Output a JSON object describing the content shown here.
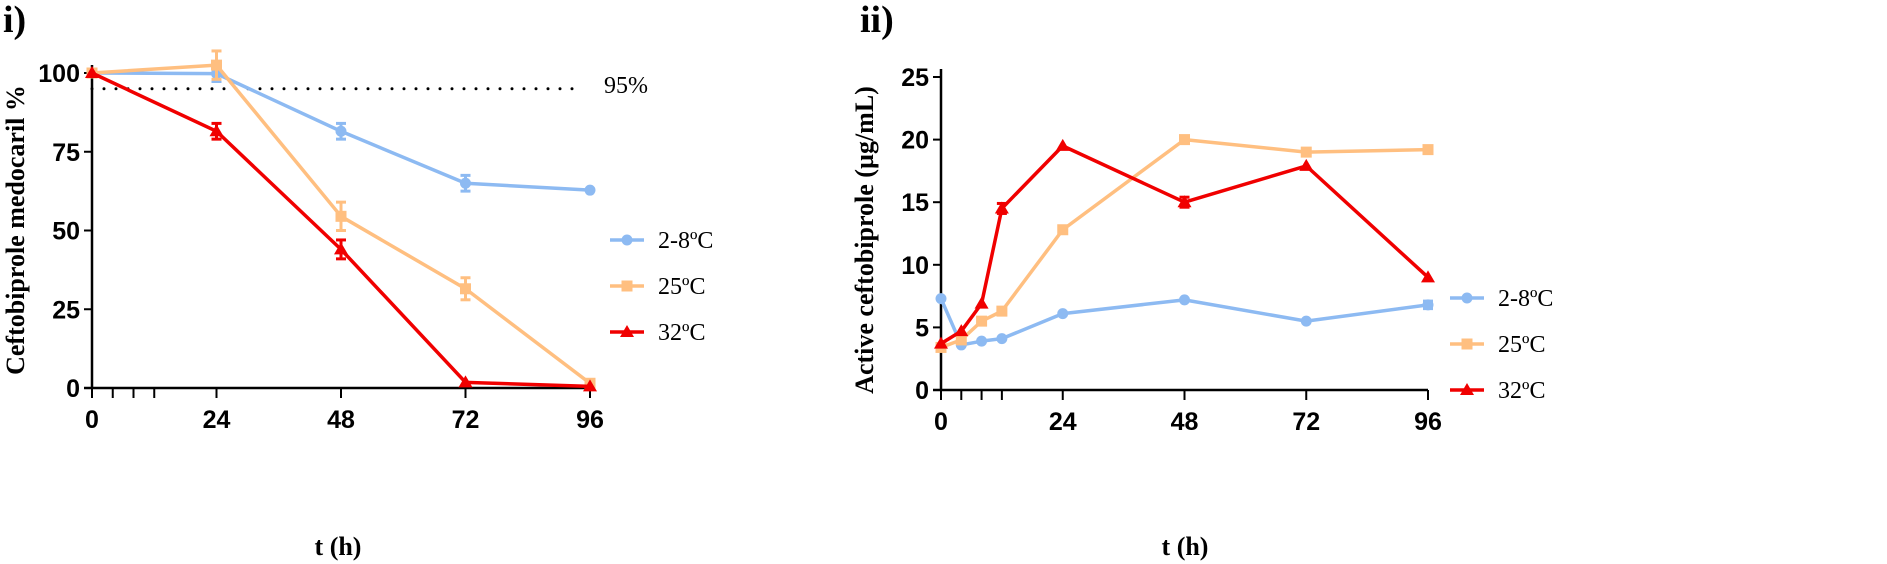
{
  "chart_data": [
    {
      "panel": "i)",
      "type": "line",
      "title": "",
      "xlabel": "t (h)",
      "ylabel": "Ceftobiprole medocaril %",
      "xlim": [
        0,
        96
      ],
      "ylim": [
        0,
        100
      ],
      "xticks": [
        0,
        24,
        48,
        72,
        96
      ],
      "xminorticks": [
        4,
        8,
        12
      ],
      "yticks": [
        0,
        25,
        50,
        75,
        100
      ],
      "grid": false,
      "legend_position": "right",
      "reference_line": {
        "y": 95,
        "label": "95%",
        "style": "dotted"
      },
      "series": [
        {
          "name": "2-8ºC",
          "color": "#8DBAF2",
          "marker": "circle",
          "x": [
            0,
            24,
            48,
            72,
            96
          ],
          "y": [
            100,
            99.8,
            81.5,
            65,
            62.8
          ],
          "err": [
            0,
            2.5,
            2.5,
            2.5,
            0
          ]
        },
        {
          "name": "25ºC",
          "color": "#FFBF80",
          "marker": "square",
          "x": [
            0,
            24,
            48,
            72,
            96
          ],
          "y": [
            100,
            102.5,
            54.5,
            31.5,
            1.5
          ],
          "err": [
            0,
            4.5,
            4.5,
            3.5,
            0
          ]
        },
        {
          "name": "32ºC",
          "color": "#F00000",
          "marker": "triangle",
          "x": [
            0,
            24,
            48,
            72,
            96
          ],
          "y": [
            100,
            81.5,
            44,
            1.8,
            0.5
          ],
          "err": [
            0,
            2.5,
            3,
            0,
            0
          ]
        }
      ]
    },
    {
      "panel": "ii)",
      "type": "line",
      "title": "",
      "xlabel": "t (h)",
      "ylabel": "Active ceftobiprole (µg/mL)",
      "xlim": [
        0,
        96
      ],
      "ylim": [
        0,
        25
      ],
      "xticks": [
        0,
        24,
        48,
        72,
        96
      ],
      "xminorticks": [
        4,
        8,
        12
      ],
      "yticks": [
        0,
        5,
        10,
        15,
        20,
        25
      ],
      "grid": false,
      "legend_position": "right",
      "series": [
        {
          "name": "2-8ºC",
          "color": "#8DBAF2",
          "marker": "circle",
          "x": [
            0,
            4,
            8,
            12,
            24,
            48,
            72,
            96
          ],
          "y": [
            7.3,
            3.6,
            3.9,
            4.1,
            6.1,
            7.2,
            5.5,
            6.8
          ],
          "err": [
            0,
            0,
            0,
            0,
            0,
            0,
            0,
            0.3
          ]
        },
        {
          "name": "25ºC",
          "color": "#FFBF80",
          "marker": "square",
          "x": [
            0,
            4,
            8,
            12,
            24,
            48,
            72,
            96
          ],
          "y": [
            3.4,
            4.0,
            5.5,
            6.3,
            12.8,
            20.0,
            19.0,
            19.2
          ],
          "err": [
            0,
            0,
            0,
            0,
            0,
            0,
            0,
            0
          ]
        },
        {
          "name": "32ºC",
          "color": "#F00000",
          "marker": "triangle",
          "x": [
            0,
            4,
            8,
            12,
            24,
            48,
            72,
            96
          ],
          "y": [
            3.7,
            4.7,
            6.9,
            14.5,
            19.5,
            15.0,
            17.9,
            9.0
          ],
          "err": [
            0,
            0,
            0,
            0.4,
            0,
            0.4,
            0,
            0
          ]
        }
      ]
    }
  ]
}
